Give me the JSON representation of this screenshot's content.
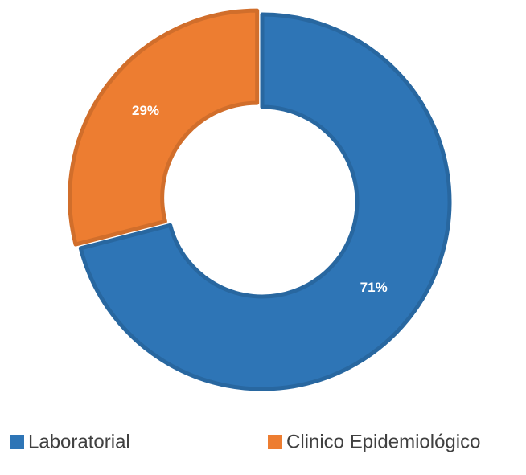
{
  "chart_data": {
    "type": "pie",
    "donut": true,
    "categories": [
      "Laboratorial",
      "Clinico Epidemiológico"
    ],
    "values": [
      71,
      29
    ],
    "value_labels": [
      "71%",
      "29%"
    ],
    "colors": [
      "#2e75b6",
      "#ed7d31"
    ],
    "legend": "bottom"
  }
}
